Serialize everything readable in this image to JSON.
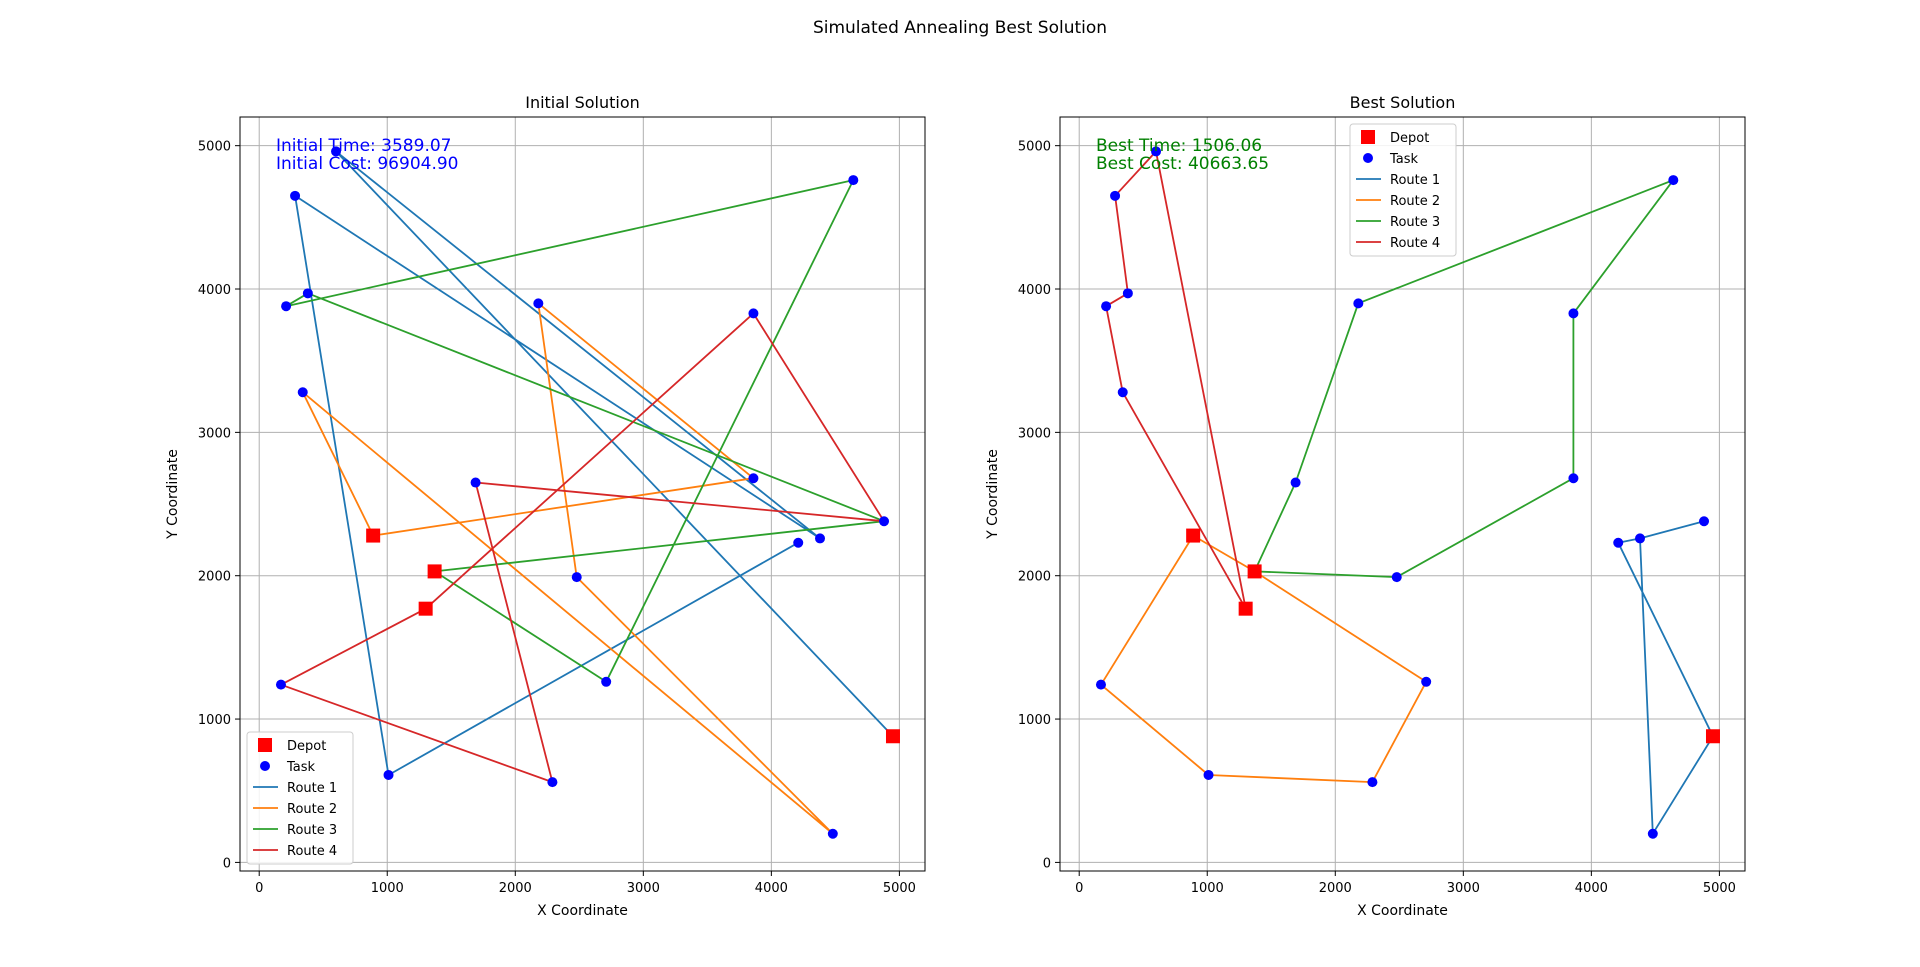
{
  "figure": {
    "suptitle": "Simulated Annealing Best Solution"
  },
  "chart_data": [
    {
      "type": "line",
      "title": "Initial Solution",
      "xlabel": "X Coordinate",
      "ylabel": "Y Coordinate",
      "xlim": [
        -150,
        5200
      ],
      "ylim": [
        -60,
        5200
      ],
      "xticks": [
        0,
        1000,
        2000,
        3000,
        4000,
        5000
      ],
      "yticks": [
        0,
        1000,
        2000,
        3000,
        4000,
        5000
      ],
      "grid": true,
      "legend_position": "lower-left",
      "annotation": {
        "lines": [
          "Initial Time: 3589.07",
          "Initial Cost: 96904.90"
        ],
        "color": "#0000ff",
        "position": "top-left"
      },
      "depots": [
        [
          4950,
          880
        ],
        [
          890,
          2280
        ],
        [
          1370,
          2030
        ],
        [
          1300,
          1770
        ]
      ],
      "tasks": [
        [
          600,
          4960
        ],
        [
          4640,
          4760
        ],
        [
          280,
          4650
        ],
        [
          380,
          3970
        ],
        [
          210,
          3880
        ],
        [
          2180,
          3900
        ],
        [
          3860,
          3830
        ],
        [
          340,
          3280
        ],
        [
          3860,
          2680
        ],
        [
          1690,
          2650
        ],
        [
          4880,
          2380
        ],
        [
          4380,
          2260
        ],
        [
          4210,
          2230
        ],
        [
          2480,
          1990
        ],
        [
          2710,
          1260
        ],
        [
          170,
          1240
        ],
        [
          1010,
          610
        ],
        [
          2290,
          560
        ],
        [
          4480,
          200
        ]
      ],
      "legend": [
        {
          "label": "Depot",
          "marker": "square",
          "color": "#ff0000"
        },
        {
          "label": "Task",
          "marker": "circle",
          "color": "#0000ff"
        },
        {
          "label": "Route 1",
          "color": "#1f77b4"
        },
        {
          "label": "Route 2",
          "color": "#ff7f0e"
        },
        {
          "label": "Route 3",
          "color": "#2ca02c"
        },
        {
          "label": "Route 4",
          "color": "#d62728"
        }
      ],
      "series": [
        {
          "name": "Route 1",
          "color": "#1f77b4",
          "points": [
            [
              4950,
              880
            ],
            [
              600,
              4960
            ],
            [
              4380,
              2260
            ],
            [
              280,
              4650
            ],
            [
              1010,
              610
            ],
            [
              4210,
              2230
            ]
          ]
        },
        {
          "name": "Route 2",
          "color": "#ff7f0e",
          "points": [
            [
              890,
              2280
            ],
            [
              3860,
              2680
            ],
            [
              2180,
              3900
            ],
            [
              2480,
              1990
            ],
            [
              4480,
              200
            ],
            [
              340,
              3280
            ],
            [
              890,
              2280
            ]
          ]
        },
        {
          "name": "Route 3",
          "color": "#2ca02c",
          "points": [
            [
              1370,
              2030
            ],
            [
              4880,
              2380
            ],
            [
              380,
              3970
            ],
            [
              210,
              3880
            ],
            [
              4640,
              4760
            ],
            [
              2710,
              1260
            ],
            [
              1370,
              2030
            ]
          ]
        },
        {
          "name": "Route 4",
          "color": "#d62728",
          "points": [
            [
              1300,
              1770
            ],
            [
              3860,
              3830
            ],
            [
              4880,
              2380
            ],
            [
              1690,
              2650
            ],
            [
              2290,
              560
            ],
            [
              170,
              1240
            ],
            [
              1300,
              1770
            ]
          ]
        }
      ]
    },
    {
      "type": "line",
      "title": "Best Solution",
      "xlabel": "X Coordinate",
      "ylabel": "Y Coordinate",
      "xlim": [
        -150,
        5200
      ],
      "ylim": [
        -60,
        5200
      ],
      "xticks": [
        0,
        1000,
        2000,
        3000,
        4000,
        5000
      ],
      "yticks": [
        0,
        1000,
        2000,
        3000,
        4000,
        5000
      ],
      "grid": true,
      "legend_position": "upper-center",
      "annotation": {
        "lines": [
          "Best Time: 1506.06",
          "Best Cost: 40663.65"
        ],
        "color": "#008000",
        "position": "top-left"
      },
      "depots": [
        [
          4950,
          880
        ],
        [
          890,
          2280
        ],
        [
          1370,
          2030
        ],
        [
          1300,
          1770
        ]
      ],
      "tasks": [
        [
          600,
          4960
        ],
        [
          4640,
          4760
        ],
        [
          280,
          4650
        ],
        [
          380,
          3970
        ],
        [
          210,
          3880
        ],
        [
          2180,
          3900
        ],
        [
          3860,
          3830
        ],
        [
          340,
          3280
        ],
        [
          3860,
          2680
        ],
        [
          1690,
          2650
        ],
        [
          4880,
          2380
        ],
        [
          4380,
          2260
        ],
        [
          4210,
          2230
        ],
        [
          2480,
          1990
        ],
        [
          2710,
          1260
        ],
        [
          170,
          1240
        ],
        [
          1010,
          610
        ],
        [
          2290,
          560
        ],
        [
          4480,
          200
        ]
      ],
      "legend": [
        {
          "label": "Depot",
          "marker": "square",
          "color": "#ff0000"
        },
        {
          "label": "Task",
          "marker": "circle",
          "color": "#0000ff"
        },
        {
          "label": "Route 1",
          "color": "#1f77b4"
        },
        {
          "label": "Route 2",
          "color": "#ff7f0e"
        },
        {
          "label": "Route 3",
          "color": "#2ca02c"
        },
        {
          "label": "Route 4",
          "color": "#d62728"
        }
      ],
      "series": [
        {
          "name": "Route 1",
          "color": "#1f77b4",
          "points": [
            [
              4950,
              880
            ],
            [
              4210,
              2230
            ],
            [
              4380,
              2260
            ],
            [
              4880,
              2380
            ],
            [
              4380,
              2260
            ],
            [
              4480,
              200
            ],
            [
              4950,
              880
            ]
          ]
        },
        {
          "name": "Route 2",
          "color": "#ff7f0e",
          "points": [
            [
              890,
              2280
            ],
            [
              170,
              1240
            ],
            [
              1010,
              610
            ],
            [
              2290,
              560
            ],
            [
              2710,
              1260
            ],
            [
              1370,
              2030
            ],
            [
              890,
              2280
            ]
          ]
        },
        {
          "name": "Route 3",
          "color": "#2ca02c",
          "points": [
            [
              1370,
              2030
            ],
            [
              1690,
              2650
            ],
            [
              2180,
              3900
            ],
            [
              4640,
              4760
            ],
            [
              3860,
              3830
            ],
            [
              3860,
              2680
            ],
            [
              2480,
              1990
            ],
            [
              1370,
              2030
            ]
          ]
        },
        {
          "name": "Route 4",
          "color": "#d62728",
          "points": [
            [
              1300,
              1770
            ],
            [
              340,
              3280
            ],
            [
              210,
              3880
            ],
            [
              380,
              3970
            ],
            [
              280,
              4650
            ],
            [
              600,
              4960
            ],
            [
              1300,
              1770
            ]
          ]
        }
      ]
    }
  ]
}
